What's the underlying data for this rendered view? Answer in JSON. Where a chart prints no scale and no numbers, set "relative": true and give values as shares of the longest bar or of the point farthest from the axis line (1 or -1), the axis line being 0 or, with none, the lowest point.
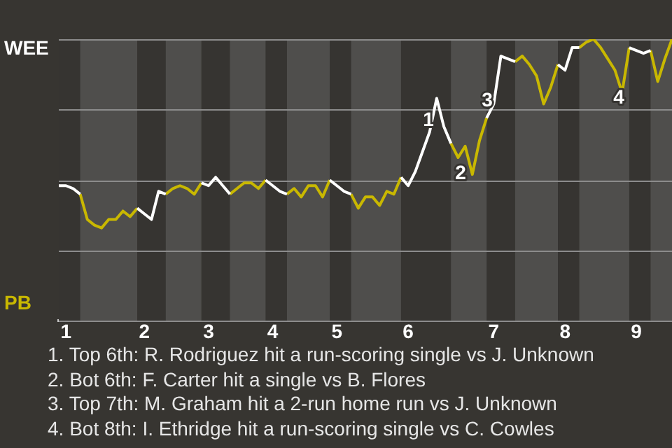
{
  "chart_data": {
    "type": "line",
    "relative": true,
    "grid": "y",
    "marker": "none",
    "line_style": "solid",
    "categories": [
      null,
      "1",
      null,
      null,
      null,
      null,
      null,
      null,
      null,
      null,
      null,
      null,
      "2",
      null,
      null,
      null,
      null,
      null,
      null,
      null,
      null,
      "3",
      null,
      null,
      null,
      null,
      null,
      null,
      null,
      null,
      "4",
      null,
      null,
      null,
      null,
      null,
      null,
      null,
      null,
      "5",
      null,
      null,
      null,
      null,
      null,
      null,
      null,
      null,
      null,
      "6",
      null,
      null,
      null,
      null,
      null,
      null,
      null,
      null,
      null,
      null,
      null,
      "7",
      null,
      null,
      null,
      null,
      null,
      null,
      null,
      null,
      null,
      "8",
      null,
      null,
      null,
      null,
      null,
      null,
      null,
      null,
      null,
      "9",
      null,
      null,
      null,
      null,
      null
    ],
    "series": [
      {
        "name": "WEE",
        "color": "#ffffff",
        "values": [
          0.48,
          0.48,
          0.47,
          0.45,
          null,
          null,
          null,
          null,
          null,
          null,
          null,
          0.4,
          0.38,
          0.36,
          0.46,
          0.45,
          null,
          null,
          null,
          null,
          0.49,
          0.48,
          0.51,
          0.48,
          0.45,
          null,
          null,
          null,
          null,
          0.5,
          0.48,
          0.46,
          0.45,
          null,
          null,
          null,
          null,
          null,
          0.5,
          0.48,
          0.46,
          0.45,
          null,
          null,
          null,
          null,
          null,
          null,
          0.51,
          0.48,
          0.53,
          0.6,
          0.67,
          0.79,
          0.69,
          0.63,
          null,
          null,
          null,
          null,
          0.72,
          0.77,
          0.94,
          0.93,
          0.92,
          null,
          null,
          null,
          null,
          null,
          0.91,
          0.89,
          0.97,
          0.97,
          null,
          null,
          null,
          null,
          null,
          null,
          0.97,
          0.96,
          0.95,
          0.96,
          null,
          null,
          null
        ]
      },
      {
        "name": "PB",
        "color": "#c9b800",
        "values": [
          null,
          null,
          null,
          0.45,
          0.36,
          0.34,
          0.33,
          0.36,
          0.36,
          0.39,
          0.37,
          0.4,
          null,
          null,
          null,
          0.45,
          0.47,
          0.48,
          0.47,
          0.45,
          0.49,
          null,
          null,
          null,
          0.45,
          0.47,
          0.49,
          0.49,
          0.47,
          0.5,
          null,
          null,
          0.45,
          0.47,
          0.44,
          0.48,
          0.48,
          0.44,
          0.5,
          null,
          null,
          0.45,
          0.4,
          0.44,
          0.44,
          0.41,
          0.46,
          0.45,
          0.51,
          null,
          null,
          null,
          null,
          null,
          null,
          0.63,
          0.58,
          0.62,
          0.52,
          0.64,
          0.72,
          null,
          null,
          null,
          0.92,
          0.94,
          0.91,
          0.87,
          0.77,
          0.83,
          0.91,
          null,
          null,
          0.97,
          0.99,
          1.0,
          0.97,
          0.93,
          0.89,
          0.81,
          0.97,
          null,
          null,
          0.96,
          0.85,
          0.93,
          1.0
        ]
      }
    ],
    "annotations": [
      "1",
      "2",
      "3",
      "4",
      "1. Top 6th: R. Rodriguez hit a run-scoring single vs J. Unknown",
      "2. Bot 6th: F. Carter hit a single vs B. Flores",
      "3. Top 7th: M. Graham hit a 2-run home run vs J. Unknown",
      "4. Bot 8th: I. Ethridge hit a run-scoring single vs C. Cowles"
    ]
  }
}
